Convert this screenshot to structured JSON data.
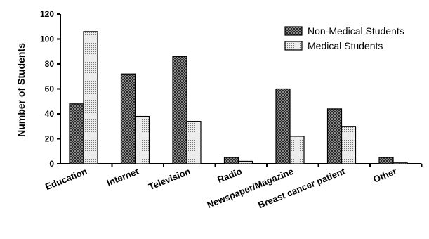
{
  "chart_data": {
    "type": "bar",
    "title": "",
    "xlabel": "",
    "ylabel": "Number of Students",
    "ylim": [
      0,
      120
    ],
    "yticks": [
      0,
      20,
      40,
      60,
      80,
      100,
      120
    ],
    "categories": [
      "Education",
      "Internet",
      "Television",
      "Radio",
      "Newspaper/Magazine",
      "Breast cancer patient",
      "Other"
    ],
    "series": [
      {
        "name": "Non-Medical Students",
        "values": [
          48,
          72,
          86,
          5,
          60,
          44,
          5
        ],
        "pattern": "dark-checker"
      },
      {
        "name": "Medical Students",
        "values": [
          106,
          38,
          34,
          2,
          22,
          30,
          1
        ],
        "pattern": "light-dots"
      }
    ],
    "legend_position": "top-right",
    "grid": false
  }
}
